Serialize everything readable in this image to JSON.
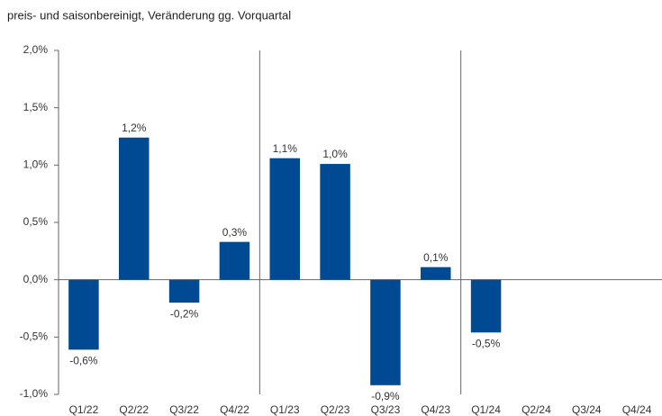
{
  "chart_data": {
    "type": "bar",
    "title": "preis- und saisonbereinigt, Veränderung gg. Vorquartal",
    "categories": [
      "Q1/22",
      "Q2/22",
      "Q3/22",
      "Q4/22",
      "Q1/23",
      "Q2/23",
      "Q3/23",
      "Q4/23",
      "Q1/24",
      "Q2/24",
      "Q3/24",
      "Q4/24"
    ],
    "values": [
      -0.61,
      1.24,
      -0.2,
      0.33,
      1.06,
      1.01,
      -0.92,
      0.11,
      -0.46,
      null,
      null,
      null
    ],
    "value_labels": [
      "-0,6%",
      "1,2%",
      "-0,2%",
      "0,3%",
      "1,1%",
      "1,0%",
      "-0,9%",
      "0,1%",
      "-0,5%",
      null,
      null,
      null
    ],
    "color": "#004a93",
    "ylim": [
      -1.0,
      2.0
    ],
    "yticks": [
      {
        "value": -1.0,
        "label": "-1,0%"
      },
      {
        "value": -0.5,
        "label": "-0,5%"
      },
      {
        "value": 0.0,
        "label": "0,0%"
      },
      {
        "value": 0.5,
        "label": "0,5%"
      },
      {
        "value": 1.0,
        "label": "1,0%"
      },
      {
        "value": 1.5,
        "label": "1,5%"
      },
      {
        "value": 2.0,
        "label": "2,0%"
      }
    ],
    "grid": false
  }
}
